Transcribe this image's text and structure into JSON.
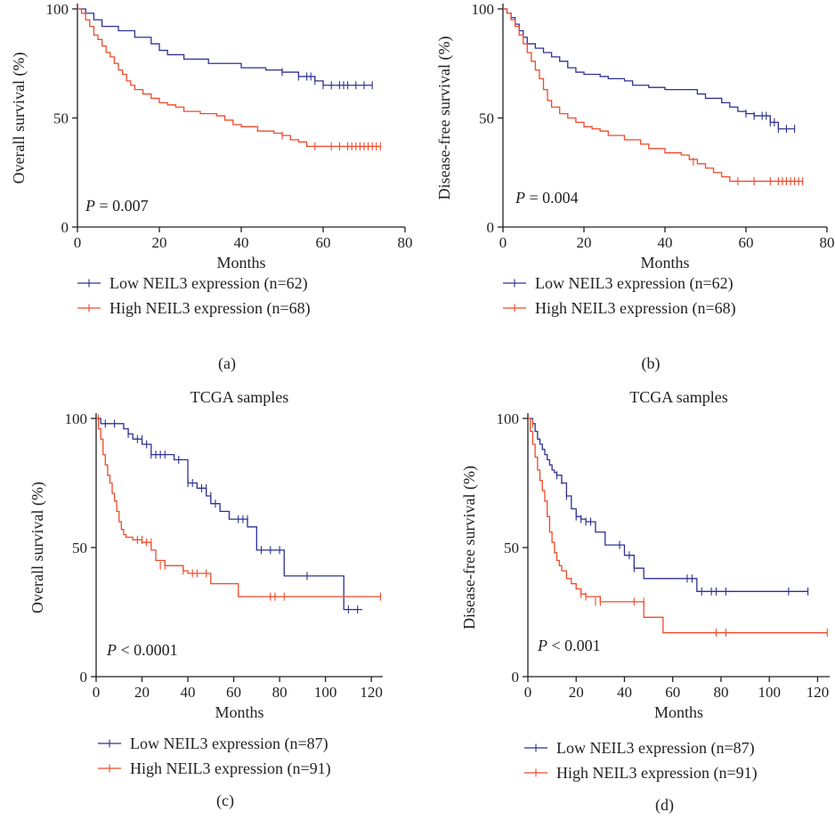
{
  "colors": {
    "low": "#2e3192",
    "high": "#ef4a2a",
    "axis": "#231f20"
  },
  "chart_data": [
    {
      "id": "a",
      "type": "line",
      "title": "",
      "panel_label": "(a)",
      "xlabel": "Months",
      "ylabel": "Overall survival (%)",
      "xlim": [
        0,
        80
      ],
      "ylim": [
        0,
        100
      ],
      "xticks": [
        0,
        20,
        40,
        60,
        80
      ],
      "yticks": [
        0,
        50,
        100
      ],
      "grid": false,
      "annotation": {
        "prefix": "P",
        "text": " = 0.007"
      },
      "series": [
        {
          "name": "Low NEIL3 expression (n=62)",
          "color_key": "low",
          "x": [
            0,
            2,
            4,
            6,
            10,
            14,
            18,
            20,
            22,
            26,
            32,
            40,
            46,
            50,
            54,
            58,
            60,
            72
          ],
          "y": [
            100,
            98,
            95,
            92,
            90,
            87,
            84,
            81,
            79,
            77,
            75,
            73,
            72,
            71,
            69,
            67,
            65,
            65
          ],
          "censored_x": [
            50,
            54,
            56,
            57,
            58,
            60,
            62,
            64,
            65,
            66,
            68,
            70,
            72
          ],
          "censored_y": [
            71,
            69,
            69,
            69,
            67,
            65,
            65,
            65,
            65,
            65,
            65,
            65,
            65
          ]
        },
        {
          "name": "High NEIL3 expression (n=68)",
          "color_key": "high",
          "x": [
            0,
            1,
            2,
            3,
            4,
            5,
            6,
            7,
            8,
            9,
            10,
            11,
            12,
            13,
            14,
            16,
            18,
            20,
            22,
            24,
            26,
            30,
            34,
            36,
            38,
            40,
            44,
            48,
            50,
            52,
            54,
            56,
            74
          ],
          "y": [
            100,
            98,
            95,
            92,
            88,
            86,
            83,
            80,
            78,
            75,
            72,
            70,
            67,
            65,
            63,
            61,
            59,
            57,
            56,
            55,
            53,
            52,
            51,
            49,
            47,
            46,
            44,
            43,
            42,
            40,
            39,
            37,
            37
          ],
          "censored_x": [
            50,
            58,
            62,
            64,
            66,
            67,
            68,
            69,
            70,
            71,
            72,
            73,
            74
          ],
          "censored_y": [
            42,
            37,
            37,
            37,
            37,
            37,
            37,
            37,
            37,
            37,
            37,
            37,
            37
          ]
        }
      ]
    },
    {
      "id": "b",
      "type": "line",
      "title": "",
      "panel_label": "(b)",
      "xlabel": "Months",
      "ylabel": "Disease-free survival (%)",
      "xlim": [
        0,
        80
      ],
      "ylim": [
        0,
        100
      ],
      "xticks": [
        0,
        20,
        40,
        60,
        80
      ],
      "yticks": [
        0,
        50,
        100
      ],
      "grid": false,
      "annotation": {
        "prefix": "P",
        "text": " = 0.004"
      },
      "series": [
        {
          "name": "Low NEIL3 expression (n=62)",
          "color_key": "low",
          "x": [
            0,
            1,
            2,
            3,
            4,
            5,
            6,
            8,
            10,
            12,
            14,
            16,
            18,
            20,
            24,
            26,
            30,
            32,
            36,
            40,
            48,
            50,
            54,
            56,
            58,
            60,
            62,
            66,
            68,
            72
          ],
          "y": [
            100,
            98,
            96,
            93,
            90,
            87,
            84,
            82,
            80,
            78,
            76,
            73,
            71,
            70,
            69,
            68,
            67,
            65,
            64,
            63,
            61,
            59,
            57,
            55,
            53,
            52,
            51,
            48,
            45,
            45
          ],
          "censored_x": [
            60,
            62,
            64,
            65,
            66,
            67,
            68,
            70,
            72
          ],
          "censored_y": [
            52,
            51,
            51,
            51,
            48,
            48,
            45,
            45,
            45
          ]
        },
        {
          "name": "High NEIL3 expression (n=68)",
          "color_key": "high",
          "x": [
            0,
            1,
            2,
            3,
            4,
            5,
            6,
            7,
            8,
            9,
            10,
            11,
            12,
            14,
            16,
            18,
            20,
            22,
            24,
            26,
            30,
            34,
            36,
            40,
            44,
            46,
            48,
            50,
            52,
            54,
            56,
            74
          ],
          "y": [
            100,
            98,
            95,
            92,
            88,
            84,
            80,
            76,
            72,
            68,
            63,
            58,
            55,
            52,
            50,
            48,
            46,
            45,
            44,
            42,
            40,
            38,
            36,
            34,
            33,
            31,
            29,
            27,
            25,
            23,
            21,
            21
          ],
          "censored_x": [
            47,
            58,
            62,
            66,
            68,
            69,
            70,
            71,
            72,
            73,
            74
          ],
          "censored_y": [
            30,
            21,
            21,
            21,
            21,
            21,
            21,
            21,
            21,
            21,
            21
          ]
        }
      ]
    },
    {
      "id": "c",
      "type": "line",
      "title": "TCGA samples",
      "panel_label": "(c)",
      "xlabel": "Months",
      "ylabel": "Overall survival (%)",
      "xlim": [
        0,
        125
      ],
      "ylim": [
        0,
        100
      ],
      "xticks": [
        0,
        20,
        40,
        60,
        80,
        100,
        120
      ],
      "yticks": [
        0,
        50,
        100
      ],
      "grid": false,
      "annotation": {
        "prefix": "P",
        "text": " < 0.0001"
      },
      "series": [
        {
          "name": "Low NEIL3 expression (n=87)",
          "color_key": "low",
          "x": [
            0,
            2,
            12,
            14,
            16,
            20,
            24,
            34,
            40,
            44,
            48,
            50,
            54,
            58,
            62,
            66,
            70,
            72,
            82,
            108,
            116
          ],
          "y": [
            100,
            98,
            96,
            94,
            92,
            90,
            86,
            84,
            75,
            73,
            70,
            67,
            64,
            61,
            61,
            58,
            49,
            49,
            39,
            26,
            26
          ],
          "censored_x": [
            4,
            8,
            14,
            18,
            20,
            22,
            24,
            26,
            28,
            30,
            36,
            40,
            42,
            46,
            48,
            50,
            52,
            62,
            64,
            66,
            72,
            76,
            80,
            92,
            110,
            114
          ],
          "censored_y": [
            98,
            98,
            94,
            92,
            92,
            90,
            86,
            86,
            86,
            86,
            84,
            75,
            75,
            73,
            73,
            70,
            67,
            61,
            61,
            61,
            49,
            49,
            49,
            39,
            26,
            26
          ]
        },
        {
          "name": "High NEIL3 expression (n=91)",
          "color_key": "high",
          "x": [
            0,
            1,
            2,
            3,
            4,
            5,
            6,
            7,
            8,
            9,
            10,
            11,
            12,
            13,
            14,
            16,
            18,
            20,
            24,
            26,
            30,
            36,
            38,
            40,
            50,
            62,
            124
          ],
          "y": [
            100,
            96,
            92,
            86,
            82,
            78,
            75,
            71,
            68,
            64,
            60,
            57,
            55,
            54,
            54,
            53,
            53,
            52,
            49,
            45,
            43,
            43,
            41,
            40,
            36,
            31,
            31
          ],
          "censored_x": [
            1,
            18,
            20,
            22,
            24,
            28,
            30,
            38,
            42,
            44,
            48,
            76,
            78,
            82,
            124
          ],
          "censored_y": [
            100,
            53,
            53,
            52,
            52,
            43,
            43,
            41,
            40,
            40,
            40,
            31,
            31,
            31,
            31
          ]
        }
      ]
    },
    {
      "id": "d",
      "type": "line",
      "title": "TCGA samples",
      "panel_label": "(d)",
      "xlabel": "Months",
      "ylabel": "Disease-free survival (%)",
      "xlim": [
        0,
        125
      ],
      "ylim": [
        0,
        100
      ],
      "xticks": [
        0,
        20,
        40,
        60,
        80,
        100,
        120
      ],
      "yticks": [
        0,
        50,
        100
      ],
      "grid": false,
      "annotation": {
        "prefix": "P",
        "text": " < 0.001"
      },
      "series": [
        {
          "name": "Low NEIL3 expression (n=87)",
          "color_key": "low",
          "x": [
            0,
            2,
            3,
            4,
            5,
            6,
            7,
            8,
            9,
            10,
            11,
            12,
            14,
            16,
            18,
            20,
            22,
            24,
            28,
            32,
            40,
            44,
            48,
            66,
            70,
            116
          ],
          "y": [
            100,
            98,
            95,
            92,
            90,
            88,
            86,
            84,
            82,
            80,
            79,
            78,
            75,
            70,
            65,
            62,
            61,
            60,
            56,
            51,
            47,
            42,
            38,
            38,
            33,
            33
          ],
          "censored_x": [
            12,
            14,
            16,
            20,
            22,
            24,
            26,
            38,
            42,
            44,
            66,
            68,
            72,
            76,
            78,
            82,
            108,
            116
          ],
          "censored_y": [
            78,
            76,
            70,
            62,
            61,
            60,
            60,
            51,
            47,
            42,
            38,
            38,
            33,
            33,
            33,
            33,
            33,
            33
          ]
        },
        {
          "name": "High NEIL3 expression (n=91)",
          "color_key": "high",
          "x": [
            0,
            1,
            2,
            3,
            4,
            5,
            6,
            7,
            8,
            9,
            10,
            11,
            12,
            13,
            14,
            16,
            18,
            20,
            22,
            24,
            30,
            48,
            56,
            124
          ],
          "y": [
            100,
            95,
            90,
            85,
            80,
            76,
            72,
            68,
            62,
            56,
            52,
            48,
            45,
            43,
            41,
            38,
            36,
            34,
            32,
            31,
            29,
            23,
            17,
            17
          ],
          "censored_x": [
            2,
            22,
            24,
            28,
            30,
            44,
            48,
            78,
            82,
            124
          ],
          "censored_y": [
            98,
            32,
            31,
            29,
            29,
            29,
            29,
            17,
            17,
            17
          ]
        }
      ]
    }
  ]
}
